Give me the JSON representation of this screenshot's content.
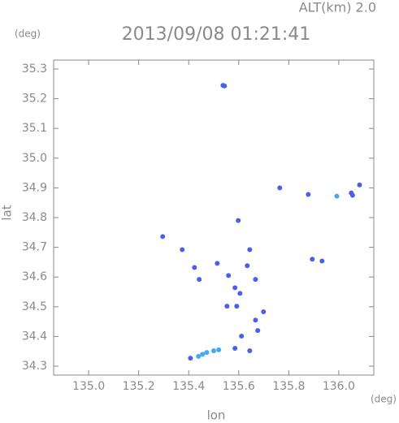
{
  "chart_data": {
    "type": "scatter",
    "title": "2013/09/08 01:21:41",
    "subtitle": "ALT(km) 2.0",
    "y_unit": "(deg)",
    "x_unit": "(deg)",
    "xlabel": "lon",
    "ylabel": "lat",
    "xlim": [
      134.86,
      136.14
    ],
    "ylim": [
      34.27,
      35.33
    ],
    "xticks": [
      {
        "value": 135,
        "label": "135.0"
      },
      135.2,
      135.4,
      135.6,
      135.8,
      {
        "value": 136,
        "label": "136.0"
      }
    ],
    "yticks": [
      34.3,
      34.4,
      34.5,
      34.6,
      34.7,
      34.8,
      34.9,
      {
        "value": 35,
        "label": "35.0"
      },
      35.1,
      35.2,
      35.3
    ],
    "series": [
      {
        "color": "#4a5ff0",
        "x": [
          135.537,
          135.543,
          135.764,
          135.878,
          136.05,
          136.055,
          136.083,
          135.296,
          135.374,
          135.423,
          135.442,
          135.514,
          135.598,
          135.644,
          135.634,
          135.559,
          135.585,
          135.605,
          135.553,
          135.592,
          135.699,
          135.667,
          135.676,
          135.894,
          135.933,
          135.644,
          135.585,
          135.611,
          135.667,
          135.407
        ],
        "values": [
          35.245,
          35.243,
          34.9,
          34.878,
          34.883,
          34.875,
          34.91,
          34.736,
          34.692,
          34.632,
          34.592,
          34.646,
          34.79,
          34.692,
          34.638,
          34.605,
          34.564,
          34.545,
          34.502,
          34.502,
          34.483,
          34.455,
          34.42,
          34.66,
          34.654,
          34.352,
          34.36,
          34.401,
          34.592,
          34.327
        ]
      },
      {
        "color": "#46a8f0",
        "x": [
          135.992,
          135.52,
          135.5,
          135.472,
          135.455,
          135.439
        ],
        "values": [
          34.872,
          34.355,
          34.352,
          34.346,
          34.34,
          34.333
        ]
      }
    ]
  }
}
